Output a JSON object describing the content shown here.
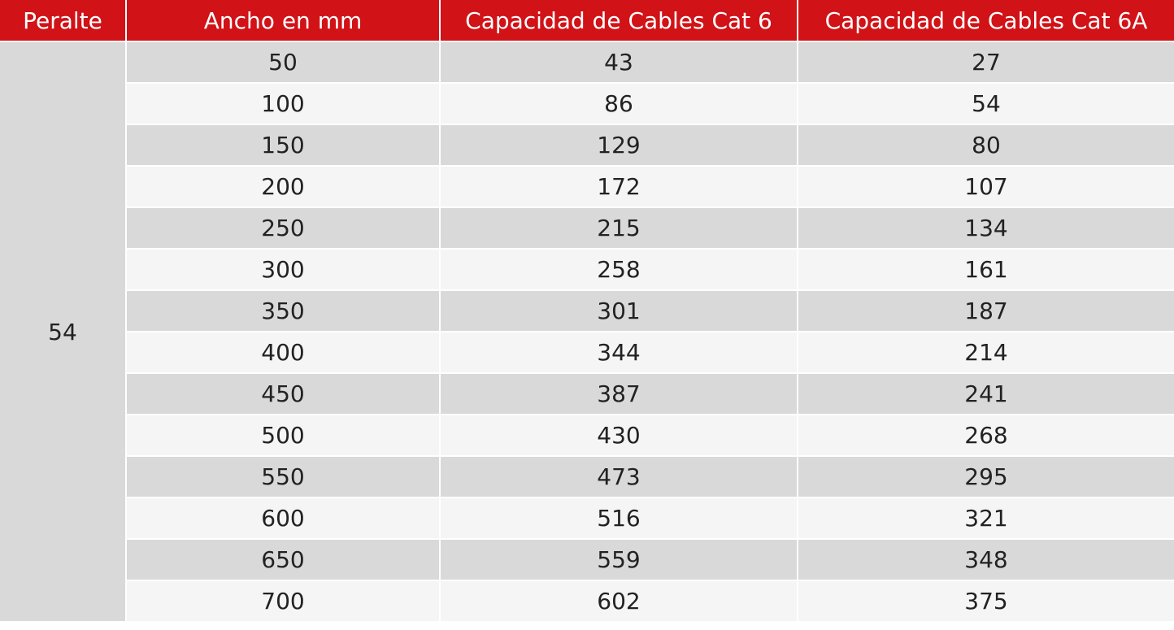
{
  "headers": [
    "Peralte",
    "Ancho en mm",
    "Capacidad de Cables Cat 6",
    "Capacidad de Cables Cat 6A"
  ],
  "peralte": "54",
  "rows": [
    [
      "50",
      "43",
      "27"
    ],
    [
      "100",
      "86",
      "54"
    ],
    [
      "150",
      "129",
      "80"
    ],
    [
      "200",
      "172",
      "107"
    ],
    [
      "250",
      "215",
      "134"
    ],
    [
      "300",
      "258",
      "161"
    ],
    [
      "350",
      "301",
      "187"
    ],
    [
      "400",
      "344",
      "214"
    ],
    [
      "450",
      "387",
      "241"
    ],
    [
      "500",
      "430",
      "268"
    ],
    [
      "550",
      "473",
      "295"
    ],
    [
      "600",
      "516",
      "321"
    ],
    [
      "650",
      "559",
      "348"
    ],
    [
      "700",
      "602",
      "375"
    ]
  ],
  "colors": {
    "header_bg": "#d11217",
    "row_dark": "#d9d9d9",
    "row_light": "#f5f5f5"
  }
}
